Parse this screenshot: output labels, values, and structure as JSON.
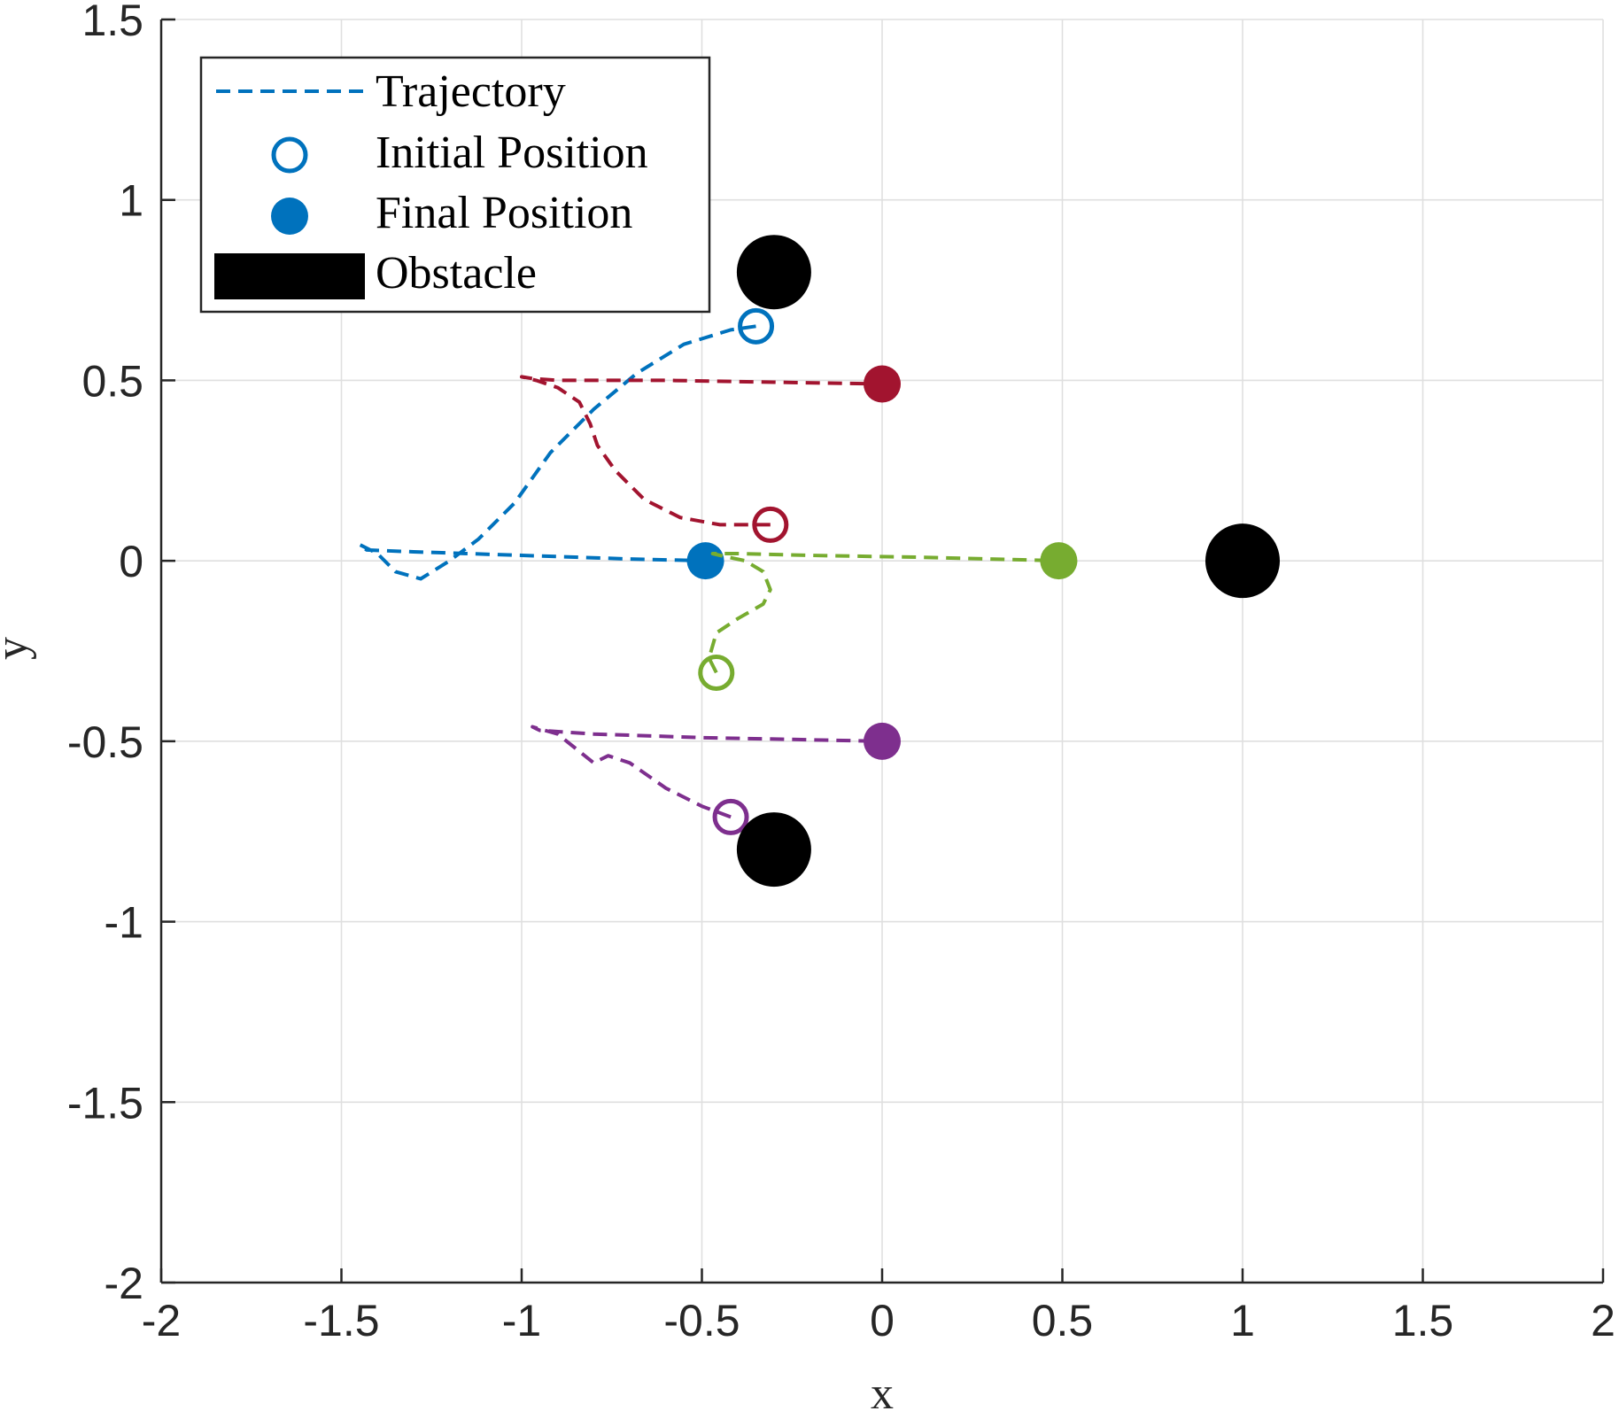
{
  "chart_data": {
    "type": "scatter",
    "title": "",
    "xlabel": "x",
    "ylabel": "y",
    "xlim": [
      -2,
      2
    ],
    "ylim": [
      -2,
      1.5
    ],
    "xticks": [
      -2,
      -1.5,
      -1,
      -0.5,
      0,
      0.5,
      1,
      1.5,
      2
    ],
    "yticks": [
      -2,
      -1.5,
      -1,
      -0.5,
      0,
      0.5,
      1,
      1.5
    ],
    "xtick_labels": [
      "-2",
      "-1.5",
      "-1",
      "-0.5",
      "0",
      "0.5",
      "1",
      "1.5",
      "2"
    ],
    "ytick_labels": [
      "-2",
      "-1.5",
      "-1",
      "-0.5",
      "0",
      "0.5",
      "1",
      "1.5"
    ],
    "grid": true,
    "legend_position": "top-left",
    "legend": [
      {
        "label": "Trajectory",
        "marker": "dashed-line",
        "color": "#0072BD"
      },
      {
        "label": "Initial Position",
        "marker": "open-circle",
        "color": "#0072BD"
      },
      {
        "label": "Final Position",
        "marker": "filled-circle",
        "color": "#0072BD"
      },
      {
        "label": "Obstacle",
        "marker": "filled-rect",
        "color": "#000000"
      }
    ],
    "obstacles": [
      {
        "x": -0.3,
        "y": 0.8
      },
      {
        "x": 1.0,
        "y": 0.0
      },
      {
        "x": -0.3,
        "y": -0.8
      }
    ],
    "series": [
      {
        "color": "#0072BD",
        "initial": {
          "x": -0.35,
          "y": 0.65
        },
        "final": {
          "x": -0.49,
          "y": 0.0
        },
        "trajectory": [
          [
            -0.35,
            0.65
          ],
          [
            -0.42,
            0.64
          ],
          [
            -0.55,
            0.6
          ],
          [
            -0.68,
            0.52
          ],
          [
            -0.8,
            0.42
          ],
          [
            -0.92,
            0.3
          ],
          [
            -1.02,
            0.16
          ],
          [
            -1.12,
            0.06
          ],
          [
            -1.2,
            0.0
          ],
          [
            -1.28,
            -0.05
          ],
          [
            -1.35,
            -0.03
          ],
          [
            -1.4,
            0.02
          ],
          [
            -1.45,
            0.045
          ],
          [
            -1.43,
            0.03
          ],
          [
            -1.3,
            0.025
          ],
          [
            -1.0,
            0.015
          ],
          [
            -0.7,
            0.005
          ],
          [
            -0.49,
            0.0
          ]
        ]
      },
      {
        "color": "#A2142F",
        "initial": {
          "x": -0.31,
          "y": 0.1
        },
        "final": {
          "x": 0.0,
          "y": 0.49
        },
        "trajectory": [
          [
            -0.31,
            0.1
          ],
          [
            -0.45,
            0.1
          ],
          [
            -0.56,
            0.12
          ],
          [
            -0.66,
            0.17
          ],
          [
            -0.74,
            0.25
          ],
          [
            -0.79,
            0.32
          ],
          [
            -0.81,
            0.38
          ],
          [
            -0.84,
            0.44
          ],
          [
            -0.9,
            0.48
          ],
          [
            -0.96,
            0.5
          ],
          [
            -1.0,
            0.51
          ],
          [
            -0.97,
            0.505
          ],
          [
            -0.9,
            0.5
          ],
          [
            -0.6,
            0.5
          ],
          [
            -0.3,
            0.495
          ],
          [
            0.0,
            0.49
          ]
        ]
      },
      {
        "color": "#77AC30",
        "initial": {
          "x": -0.46,
          "y": -0.31
        },
        "final": {
          "x": 0.49,
          "y": 0.0
        },
        "trajectory": [
          [
            -0.46,
            -0.31
          ],
          [
            -0.48,
            -0.27
          ],
          [
            -0.46,
            -0.2
          ],
          [
            -0.4,
            -0.16
          ],
          [
            -0.33,
            -0.12
          ],
          [
            -0.31,
            -0.08
          ],
          [
            -0.33,
            -0.03
          ],
          [
            -0.38,
            0.0
          ],
          [
            -0.45,
            0.015
          ],
          [
            -0.47,
            0.02
          ],
          [
            -0.4,
            0.02
          ],
          [
            -0.2,
            0.015
          ],
          [
            0.1,
            0.01
          ],
          [
            0.3,
            0.005
          ],
          [
            0.49,
            0.0
          ]
        ]
      },
      {
        "color": "#7E2F8E",
        "initial": {
          "x": -0.42,
          "y": -0.71
        },
        "final": {
          "x": 0.0,
          "y": -0.5
        },
        "trajectory": [
          [
            -0.42,
            -0.71
          ],
          [
            -0.5,
            -0.68
          ],
          [
            -0.6,
            -0.63
          ],
          [
            -0.7,
            -0.56
          ],
          [
            -0.76,
            -0.54
          ],
          [
            -0.8,
            -0.56
          ],
          [
            -0.85,
            -0.52
          ],
          [
            -0.9,
            -0.48
          ],
          [
            -0.97,
            -0.46
          ],
          [
            -0.95,
            -0.47
          ],
          [
            -0.8,
            -0.48
          ],
          [
            -0.5,
            -0.49
          ],
          [
            -0.25,
            -0.495
          ],
          [
            0.0,
            -0.5
          ]
        ]
      }
    ]
  }
}
